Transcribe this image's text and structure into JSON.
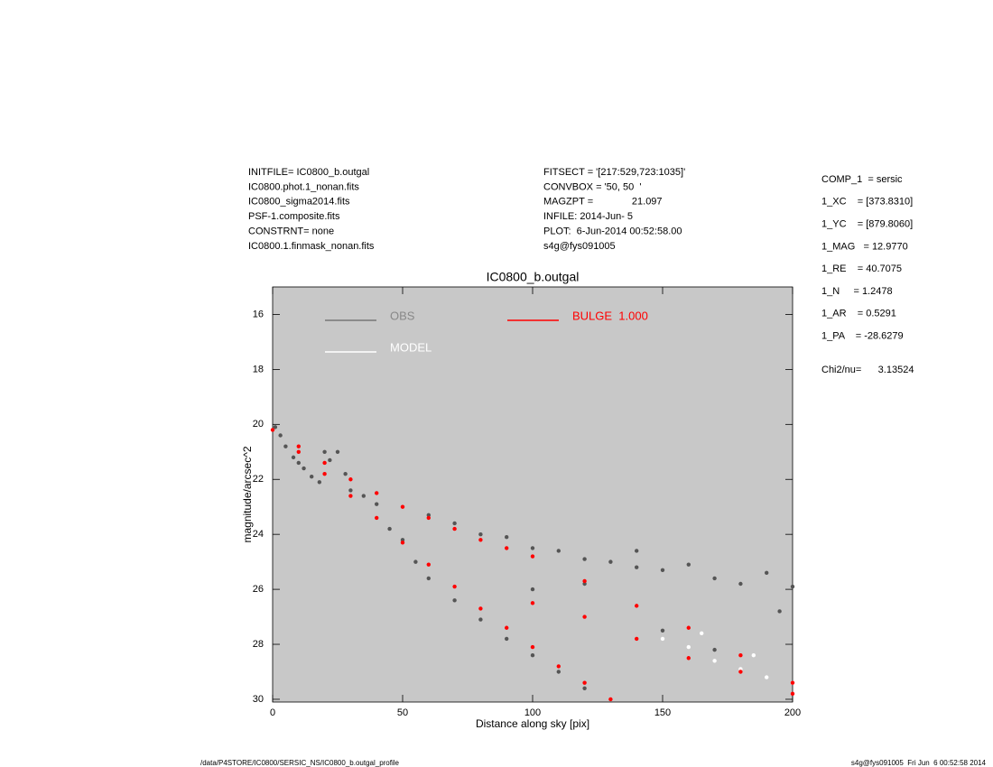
{
  "header": {
    "left": [
      "INITFILE= IC0800_b.outgal",
      "IC0800.phot.1_nonan.fits",
      "IC0800_sigma2014.fits",
      "PSF-1.composite.fits",
      "CONSTRNT= none",
      "IC0800.1.finmask_nonan.fits"
    ],
    "middle": [
      "FITSECT = '[217:529,723:1035]'",
      "CONVBOX = '50, 50  '",
      "MAGZPT =              21.097",
      "INFILE: 2014-Jun- 5",
      "PLOT:  6-Jun-2014 00:52:58.00",
      "s4g@fys091005"
    ],
    "right": [
      "COMP_1  = sersic",
      "1_XC    = [373.8310]",
      "1_YC    = [879.8060]",
      "1_MAG   = 12.9770",
      "1_RE    = 40.7075",
      "1_N     = 1.2478",
      "1_AR    = 0.5291",
      "1_PA    = -28.6279"
    ],
    "chi2": "Chi2/nu=      3.13524"
  },
  "footer": {
    "left": "/data/P4STORE/IC0800/SERSIC_NS/IC0800_b.outgal_profile",
    "right": "s4g@fys091005  Fri Jun  6 00:52:58 2014"
  },
  "chart_data": {
    "type": "scatter",
    "title": "IC0800_b.outgal",
    "xlabel": "Distance along sky [pix]",
    "ylabel": "magnitude/arcsec^2",
    "xlim": [
      0,
      200
    ],
    "xticks": [
      0,
      50,
      100,
      150,
      200
    ],
    "ylim": [
      30.1,
      15
    ],
    "yticks": [
      16,
      18,
      20,
      22,
      24,
      26,
      28,
      30
    ],
    "background": "#c8c8c8",
    "grid": false,
    "series": [
      {
        "name": "OBS",
        "color": "#555555",
        "x": [
          1,
          3,
          5,
          8,
          10,
          12,
          15,
          18,
          20,
          22,
          25,
          28,
          30,
          35,
          40,
          45,
          50,
          55,
          60,
          70,
          80,
          90,
          100,
          110,
          120,
          60,
          70,
          80,
          90,
          100,
          110,
          120,
          130,
          140,
          150,
          160,
          170,
          180,
          190,
          200,
          150,
          170,
          195,
          140,
          120,
          100
        ],
        "y": [
          20.1,
          20.4,
          20.8,
          21.2,
          21.4,
          21.6,
          21.9,
          22.1,
          21.0,
          21.3,
          21.0,
          21.8,
          22.4,
          22.6,
          22.9,
          23.8,
          24.2,
          25.0,
          25.6,
          26.4,
          27.1,
          27.8,
          28.4,
          29.0,
          29.6,
          23.3,
          23.6,
          24.0,
          24.1,
          24.5,
          24.6,
          24.9,
          25.0,
          25.2,
          25.3,
          25.1,
          25.6,
          25.8,
          25.4,
          25.9,
          27.5,
          28.2,
          26.8,
          24.6,
          25.8,
          26.0
        ]
      },
      {
        "name": "MODEL",
        "color": "#ffffff",
        "x": [
          150,
          160,
          170,
          180,
          190,
          200,
          165,
          185
        ],
        "y": [
          27.8,
          28.1,
          28.6,
          28.9,
          29.2,
          29.4,
          27.6,
          28.4
        ]
      },
      {
        "name": "BULGE  1.000",
        "color": "#ff0000",
        "x": [
          0,
          10,
          20,
          30,
          40,
          50,
          60,
          70,
          80,
          90,
          100,
          120,
          140,
          160,
          180,
          200,
          10,
          20,
          30,
          40,
          50,
          60,
          70,
          80,
          90,
          100,
          110,
          120,
          130,
          100,
          120,
          140,
          160,
          180,
          200
        ],
        "y": [
          20.2,
          20.8,
          21.4,
          22.0,
          22.5,
          23.0,
          23.4,
          23.8,
          24.2,
          24.5,
          24.8,
          25.7,
          26.6,
          27.4,
          28.4,
          29.4,
          21.0,
          21.8,
          22.6,
          23.4,
          24.3,
          25.1,
          25.9,
          26.7,
          27.4,
          28.1,
          28.8,
          29.4,
          30.0,
          26.5,
          27.0,
          27.8,
          28.5,
          29.0,
          29.8
        ]
      }
    ]
  }
}
